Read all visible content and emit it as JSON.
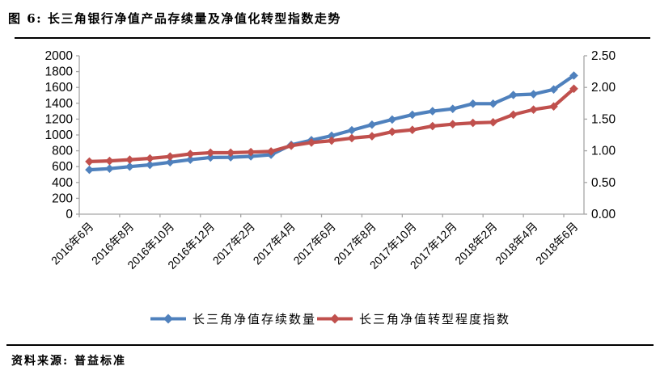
{
  "page": {
    "title": "图 6: 长三角银行净值产品存续量及净值化转型指数走势",
    "source": "资料来源: 普益标准"
  },
  "chart_data": {
    "type": "line",
    "title": "长三角银行净值产品存续量及净值化转型指数走势",
    "categories": [
      "2016年6月",
      "2016年7月",
      "2016年8月",
      "2016年9月",
      "2016年10月",
      "2016年11月",
      "2016年12月",
      "2017年1月",
      "2017年2月",
      "2017年3月",
      "2017年4月",
      "2017年5月",
      "2017年6月",
      "2017年7月",
      "2017年8月",
      "2017年9月",
      "2017年10月",
      "2017年11月",
      "2017年12月",
      "2018年1月",
      "2018年2月",
      "2018年3月",
      "2018年4月",
      "2018年5月",
      "2018年6月"
    ],
    "x_tick_label_every": 2,
    "x_tick_labels_shown": [
      "2016年6月",
      "2016年8月",
      "2016年10月",
      "2016年12月",
      "2017年2月",
      "2017年4月",
      "2017年6月",
      "2017年8月",
      "2017年10月",
      "2017年12月",
      "2018年2月",
      "2018年4月",
      "2018年6月"
    ],
    "series": [
      {
        "name": "长三角净值存续数量",
        "axis": "left",
        "color": "#4F81BD",
        "marker": "diamond",
        "values": [
          560,
          575,
          600,
          622,
          655,
          688,
          715,
          718,
          730,
          750,
          875,
          935,
          990,
          1060,
          1130,
          1195,
          1255,
          1300,
          1330,
          1395,
          1395,
          1505,
          1515,
          1575,
          1750
        ]
      },
      {
        "name": "长三角净值转型程度指数",
        "axis": "right",
        "color": "#C0504D",
        "marker": "diamond",
        "values": [
          0.83,
          0.84,
          0.86,
          0.88,
          0.91,
          0.95,
          0.97,
          0.97,
          0.98,
          0.99,
          1.08,
          1.13,
          1.16,
          1.2,
          1.23,
          1.3,
          1.33,
          1.39,
          1.42,
          1.44,
          1.45,
          1.57,
          1.65,
          1.7,
          1.98
        ]
      }
    ],
    "left_axis": {
      "min": 0,
      "max": 2000,
      "step": 200
    },
    "right_axis": {
      "min": 0.0,
      "max": 2.5,
      "step": 0.5,
      "decimals": 2
    },
    "grid": false,
    "legend_position": "bottom",
    "axis_color": "#a6a6a6"
  }
}
